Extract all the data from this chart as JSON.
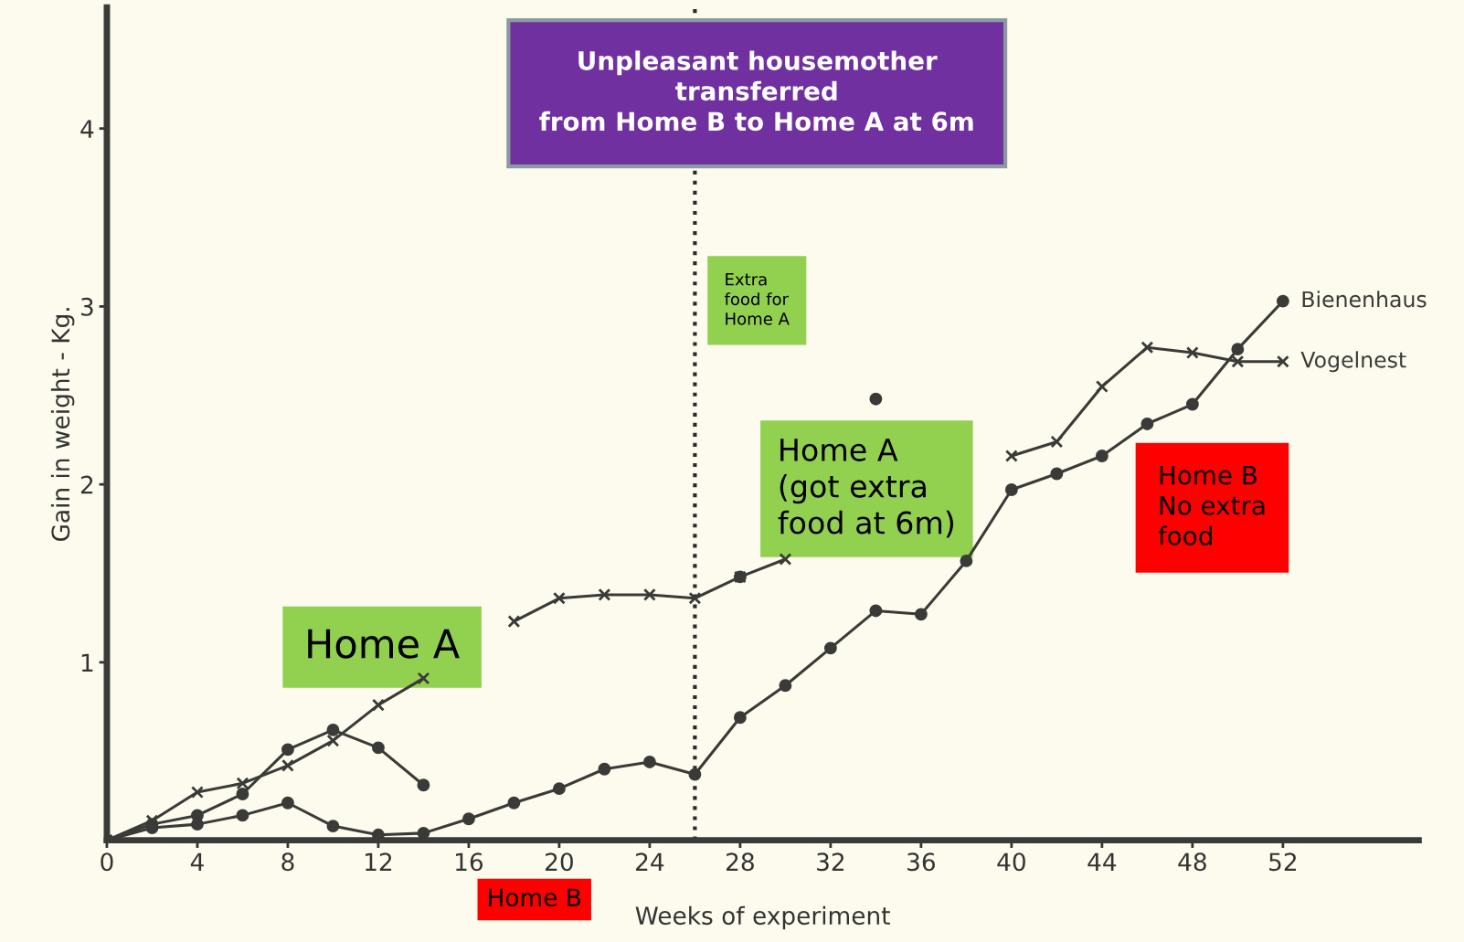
{
  "chart_data": {
    "type": "line",
    "xlabel": "Weeks of experiment",
    "ylabel": "Gain in weight - Kg.",
    "x": [
      0,
      2,
      4,
      6,
      8,
      10,
      12,
      14,
      16,
      18,
      20,
      22,
      24,
      26,
      28,
      30,
      32,
      34,
      36,
      38,
      40,
      42,
      44,
      46,
      48,
      50,
      52
    ],
    "series": [
      {
        "name": "Bienenhaus",
        "color": "#3a3a38",
        "marker": "circle",
        "values": [
          0,
          0.07,
          0.09,
          0.14,
          0.21,
          0.08,
          0.03,
          0.04,
          0.12,
          0.21,
          0.29,
          0.4,
          0.44,
          0.37,
          0.69,
          0.87,
          1.08,
          1.29,
          1.27,
          1.57,
          1.97,
          2.06,
          2.16,
          2.34,
          2.45,
          2.76,
          3.03
        ]
      },
      {
        "name": "Vogelnest",
        "color": "#3a3a38",
        "marker": "cross",
        "values": [
          0,
          0.11,
          0.27,
          0.32,
          0.42,
          0.56,
          0.76,
          0.91,
          null,
          1.23,
          1.36,
          1.38,
          1.38,
          1.36,
          1.48,
          1.58,
          null,
          null,
          null,
          null,
          2.16,
          2.24,
          2.55,
          2.77,
          2.74,
          2.69,
          2.69
        ]
      },
      {
        "color": "#3a3a38",
        "marker": "circle",
        "values": [
          0,
          0.09,
          0.14,
          0.26,
          0.51,
          0.62,
          0.52,
          0.31,
          null,
          null,
          null,
          null,
          null,
          null,
          1.48,
          null,
          null,
          2.48,
          null,
          null,
          null,
          null,
          null,
          null,
          null,
          null,
          null
        ]
      }
    ],
    "xlim": [
      0,
      58
    ],
    "ylim": [
      0,
      4.68
    ],
    "xticks": [
      0,
      4,
      8,
      12,
      16,
      20,
      24,
      28,
      32,
      36,
      40,
      44,
      48,
      52
    ],
    "yticks": [
      1,
      2,
      3,
      4
    ],
    "grid": false,
    "legend": false,
    "line_style": "solid",
    "ref_lines": [
      {
        "axis": "x",
        "value": 26,
        "color": "#2a2a2a",
        "line_style": "dotted"
      }
    ],
    "annotations": [
      "Unpleasant housemother\ntransferred\nfrom Home B to Home A at 6m",
      "Extra\nfood for\nHome A",
      "Home A",
      "Home A\n(got extra\nfood at 6m)",
      "Home B",
      "Home B\nNo extra\nfood"
    ]
  }
}
